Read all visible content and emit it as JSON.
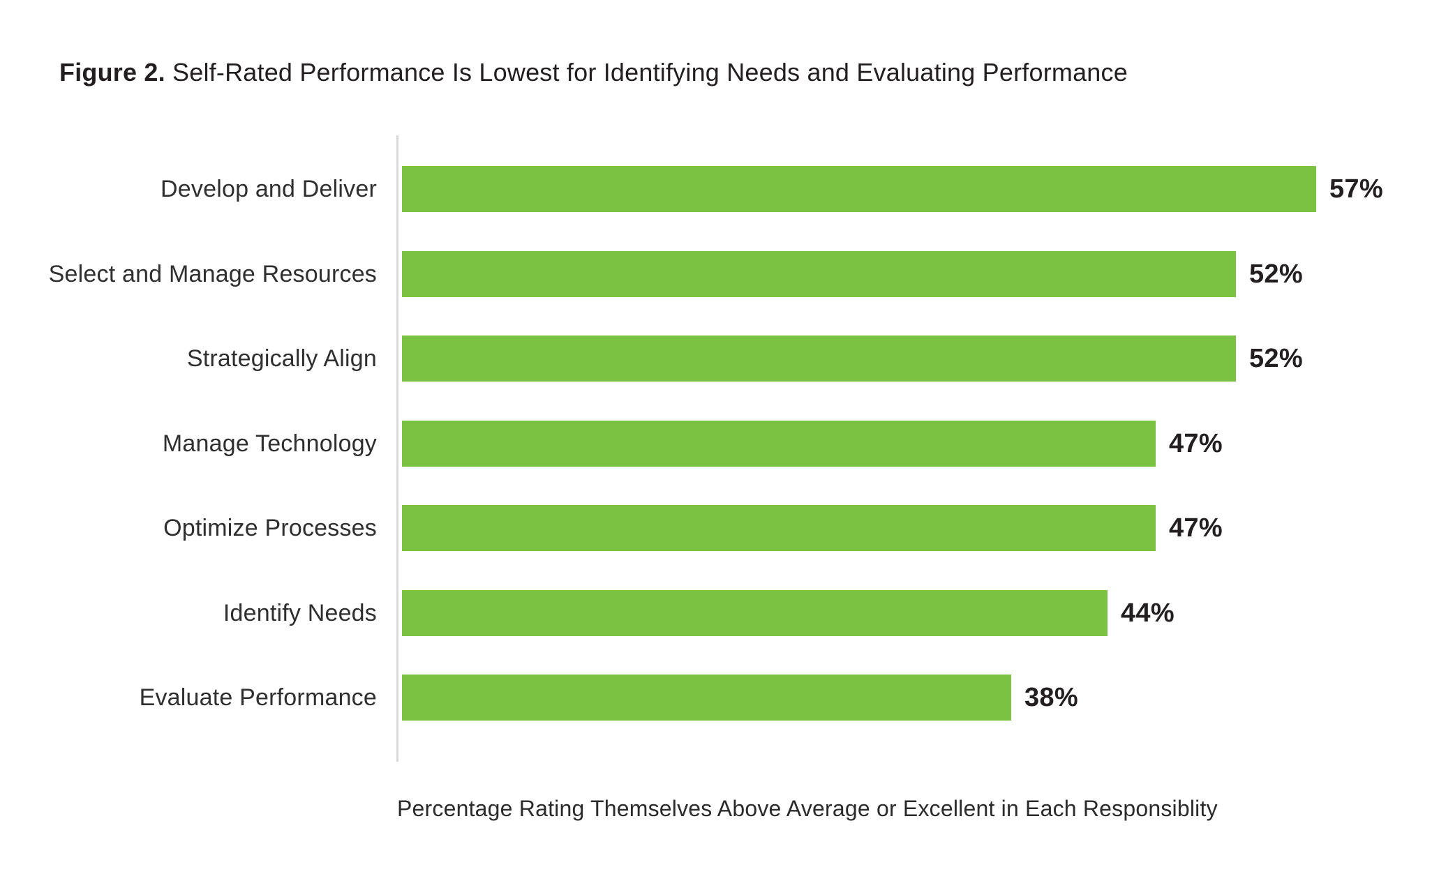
{
  "figure": {
    "title_prefix": "Figure 2.",
    "title_rest": " Self-Rated Performance Is Lowest for Identifying Needs and Evaluating Performance"
  },
  "chart_data": {
    "type": "bar",
    "orientation": "horizontal",
    "title": "Figure 2. Self-Rated Performance Is Lowest for Identifying Needs and Evaluating Performance",
    "categories": [
      "Develop and Deliver",
      "Select and Manage Resources",
      "Strategically Align",
      "Manage Technology",
      "Optimize Processes",
      "Identify Needs",
      "Evaluate Performance"
    ],
    "values": [
      57,
      52,
      52,
      47,
      47,
      44,
      38
    ],
    "value_labels": [
      "57%",
      "52%",
      "52%",
      "47%",
      "47%",
      "44%",
      "38%"
    ],
    "xlabel": "Percentage Rating Themselves Above Average or Excellent in Each Responsiblity",
    "ylabel": "",
    "xlim": [
      0,
      57
    ],
    "grid": false,
    "legend": null,
    "bar_color": "#7CC242",
    "category_label_color": "#2F2F30",
    "value_label_color": "#231F20",
    "axis_line_color": "#D9D9DB"
  }
}
